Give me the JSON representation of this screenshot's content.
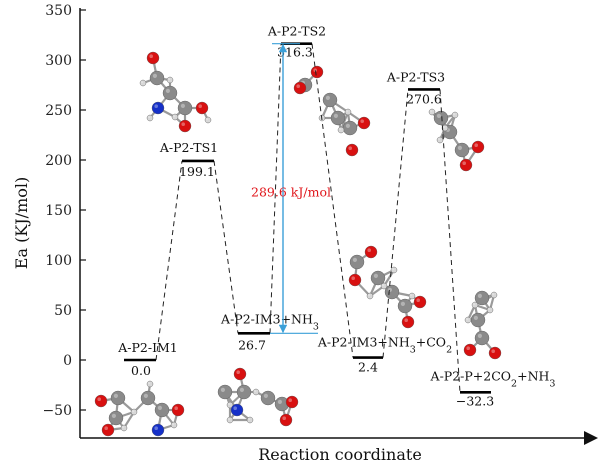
{
  "chart_data": {
    "type": "line",
    "title": "",
    "xlabel": "Reaction coordinate",
    "ylabel": "Ea (KJ/mol)",
    "ylim": [
      -70,
      350
    ],
    "yticks": [
      {
        "value": 350,
        "label": "350"
      },
      {
        "value": 300,
        "label": "300"
      },
      {
        "value": 250,
        "label": "250"
      },
      {
        "value": 200,
        "label": "200"
      },
      {
        "value": 150,
        "label": "150"
      },
      {
        "value": 100,
        "label": "100"
      },
      {
        "value": 50,
        "label": "50"
      },
      {
        "value": 0,
        "label": "0"
      },
      {
        "value": -50,
        "label": "−50"
      }
    ],
    "grid": false,
    "legend": "none",
    "points": [
      {
        "name": "A-P2-IM1",
        "value": 0.0,
        "label": "0.0"
      },
      {
        "name": "A-P2-TS1",
        "value": 199.1,
        "label": "199.1"
      },
      {
        "name": "A-P2-IM3+NH₃",
        "value": 26.7,
        "label": "26.7"
      },
      {
        "name": "A-P2-TS2",
        "value": 316.3,
        "label": "316.3"
      },
      {
        "name": "A-P2-IM3+NH₃+CO₂",
        "value": 2.4,
        "label": "2.4"
      },
      {
        "name": "A-P2-TS3",
        "value": 270.6,
        "label": "270.6"
      },
      {
        "name": "A-P2-P+2CO₂+NH₃",
        "value": -32.3,
        "label": "−32.3"
      }
    ],
    "annotation": {
      "text": "289.6 kJ/mol",
      "from": 26.7,
      "to": 316.3,
      "color": "#3ca0d8"
    },
    "colors": {
      "connector": "#222222",
      "arrow": "#3ca0d8",
      "annotation_text": "#e0161b"
    }
  }
}
